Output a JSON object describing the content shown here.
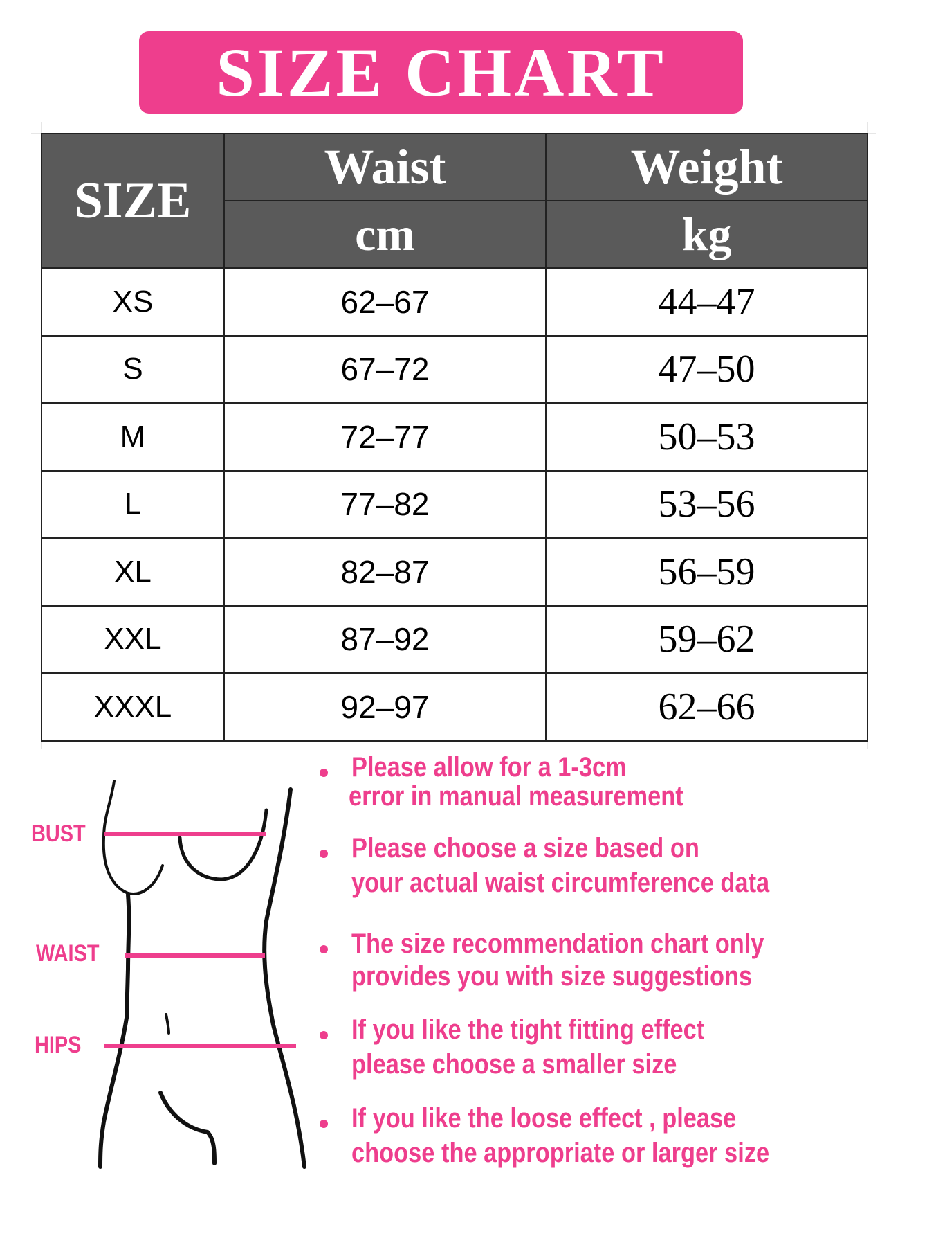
{
  "title": "SIZE CHART",
  "colors": {
    "accent": "#ee3e8d",
    "header_bg": "#5a5a5a"
  },
  "table": {
    "headers": {
      "size": "SIZE",
      "waist": "Waist",
      "waist_unit": "cm",
      "weight": "Weight",
      "weight_unit": "kg"
    },
    "rows": [
      {
        "size": "XS",
        "waist": "62-67",
        "weight": "44-47"
      },
      {
        "size": "S",
        "waist": "67-72",
        "weight": "47-50"
      },
      {
        "size": "M",
        "waist": "72-77",
        "weight": "50-53"
      },
      {
        "size": "L",
        "waist": "77-82",
        "weight": "53-56"
      },
      {
        "size": "XL",
        "waist": "82-87",
        "weight": "56-59"
      },
      {
        "size": "XXL",
        "waist": "87-92",
        "weight": "59-62"
      },
      {
        "size": "XXXL",
        "waist": "92-97",
        "weight": "62-66"
      }
    ]
  },
  "figure": {
    "bust": "BUST",
    "waist": "WAIST",
    "hips": "HIPS"
  },
  "notes": [
    [
      "Please allow for a 1-3cm",
      "error in manual measurement"
    ],
    [
      "Please choose a size based on",
      "your actual waist circumference data"
    ],
    [
      "The size recommendation chart only",
      "provides you with size suggestions"
    ],
    [
      "If you like the tight fitting effect",
      "please choose a smaller size"
    ],
    [
      "If you like the loose effect , please",
      "choose the appropriate or larger size"
    ]
  ]
}
